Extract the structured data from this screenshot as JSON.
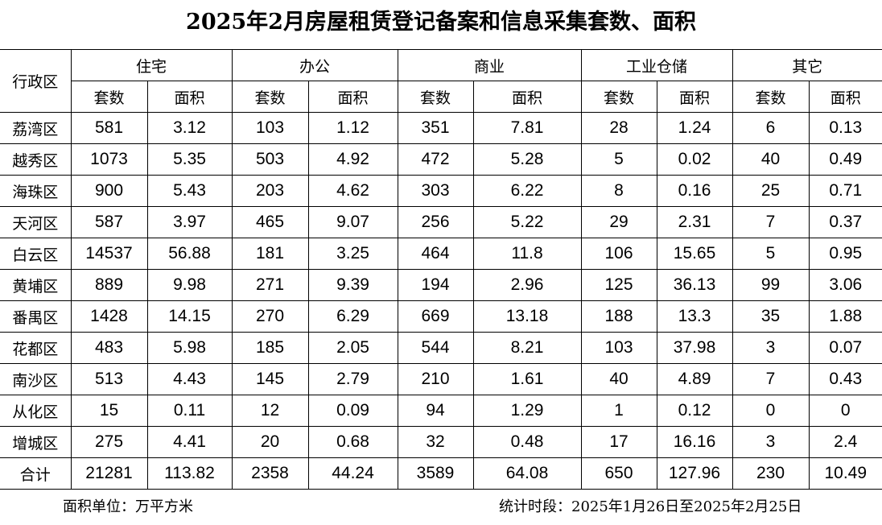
{
  "title": "2025年2月房屋租赁登记备案和信息采集套数、面积",
  "header": {
    "district": "行政区",
    "groups": [
      "住宅",
      "办公",
      "商业",
      "工业仓储",
      "其它"
    ],
    "sub": [
      "套数",
      "面积"
    ]
  },
  "rows": [
    {
      "name": "荔湾区",
      "values": [
        "581",
        "3.12",
        "103",
        "1.12",
        "351",
        "7.81",
        "28",
        "1.24",
        "6",
        "0.13"
      ]
    },
    {
      "name": "越秀区",
      "values": [
        "1073",
        "5.35",
        "503",
        "4.92",
        "472",
        "5.28",
        "5",
        "0.02",
        "40",
        "0.49"
      ]
    },
    {
      "name": "海珠区",
      "values": [
        "900",
        "5.43",
        "203",
        "4.62",
        "303",
        "6.22",
        "8",
        "0.16",
        "25",
        "0.71"
      ]
    },
    {
      "name": "天河区",
      "values": [
        "587",
        "3.97",
        "465",
        "9.07",
        "256",
        "5.22",
        "29",
        "2.31",
        "7",
        "0.37"
      ]
    },
    {
      "name": "白云区",
      "values": [
        "14537",
        "56.88",
        "181",
        "3.25",
        "464",
        "11.8",
        "106",
        "15.65",
        "5",
        "0.95"
      ]
    },
    {
      "name": "黄埔区",
      "values": [
        "889",
        "9.98",
        "271",
        "9.39",
        "194",
        "2.96",
        "125",
        "36.13",
        "99",
        "3.06"
      ]
    },
    {
      "name": "番禺区",
      "values": [
        "1428",
        "14.15",
        "270",
        "6.29",
        "669",
        "13.18",
        "188",
        "13.3",
        "35",
        "1.88"
      ]
    },
    {
      "name": "花都区",
      "values": [
        "483",
        "5.98",
        "185",
        "2.05",
        "544",
        "8.21",
        "103",
        "37.98",
        "3",
        "0.07"
      ]
    },
    {
      "name": "南沙区",
      "values": [
        "513",
        "4.43",
        "145",
        "2.79",
        "210",
        "1.61",
        "40",
        "4.89",
        "7",
        "0.43"
      ]
    },
    {
      "name": "从化区",
      "values": [
        "15",
        "0.11",
        "12",
        "0.09",
        "94",
        "1.29",
        "1",
        "0.12",
        "0",
        "0"
      ]
    },
    {
      "name": "增城区",
      "values": [
        "275",
        "4.41",
        "20",
        "0.68",
        "32",
        "0.48",
        "17",
        "16.16",
        "3",
        "2.4"
      ]
    }
  ],
  "total": {
    "name": "合计",
    "values": [
      "21281",
      "113.82",
      "2358",
      "44.24",
      "3589",
      "64.08",
      "650",
      "127.96",
      "230",
      "10.49"
    ]
  },
  "footer": {
    "unit": "面积单位：万平方米",
    "period": "统计时段：2025年1月26日至2025年2月25日"
  }
}
